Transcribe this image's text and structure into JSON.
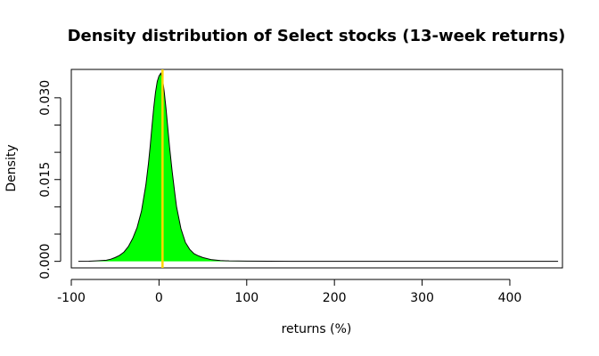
{
  "chart_data": {
    "type": "area",
    "title": "Density distribution of Select stocks (13-week returns)",
    "xlabel": "returns (%)",
    "ylabel": "Density",
    "xlim": [
      -100,
      460
    ],
    "ylim": [
      -0.0012,
      0.0352
    ],
    "x_ticks": [
      {
        "value": -100,
        "label": "-100"
      },
      {
        "value": 0,
        "label": "0"
      },
      {
        "value": 100,
        "label": "100"
      },
      {
        "value": 200,
        "label": "200"
      },
      {
        "value": 300,
        "label": "300"
      },
      {
        "value": 400,
        "label": "400"
      }
    ],
    "y_ticks": [
      {
        "value": 0,
        "label": "0.000"
      },
      {
        "value": 0.005,
        "label": ""
      },
      {
        "value": 0.01,
        "label": ""
      },
      {
        "value": 0.015,
        "label": "0.015"
      },
      {
        "value": 0.02,
        "label": ""
      },
      {
        "value": 0.025,
        "label": ""
      },
      {
        "value": 0.03,
        "label": "0.030"
      }
    ],
    "grid": false,
    "fill_color": "#00ff00",
    "line_color": "#000000",
    "reference_line": {
      "x": 4,
      "color": "#ffd700"
    },
    "x": [
      -92,
      -80,
      -70,
      -60,
      -55,
      -50,
      -45,
      -40,
      -35,
      -30,
      -25,
      -20,
      -15,
      -12,
      -10,
      -8,
      -6,
      -4,
      -2,
      0,
      2,
      4,
      6,
      8,
      10,
      12,
      15,
      18,
      20,
      25,
      30,
      35,
      40,
      45,
      50,
      60,
      70,
      80,
      100,
      150,
      200,
      300,
      400,
      455
    ],
    "y": [
      0,
      3e-05,
      0.0001,
      0.0002,
      0.0004,
      0.0007,
      0.0011,
      0.0017,
      0.0027,
      0.0042,
      0.0062,
      0.0092,
      0.014,
      0.018,
      0.0212,
      0.0248,
      0.0282,
      0.031,
      0.033,
      0.034,
      0.0345,
      0.0335,
      0.031,
      0.028,
      0.0245,
      0.021,
      0.0165,
      0.0125,
      0.01,
      0.006,
      0.0035,
      0.0022,
      0.0014,
      0.001,
      0.0007,
      0.0003,
      0.00015,
      8e-05,
      4e-05,
      1e-05,
      5e-06,
      0,
      0,
      0
    ]
  }
}
